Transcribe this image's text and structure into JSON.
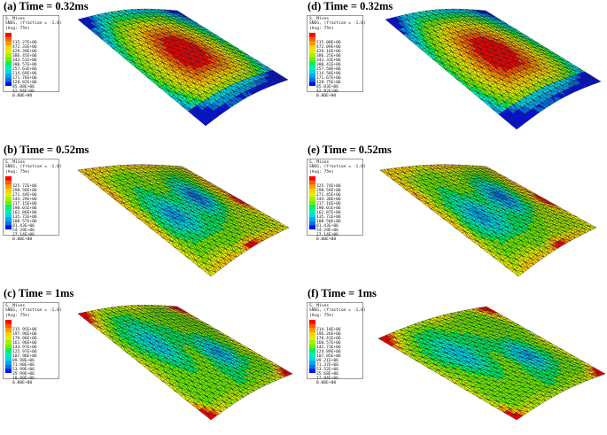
{
  "panels": [
    {
      "label": "(a)",
      "time": "Time = 0.32ms",
      "legend": {
        "l1": "S, Mises",
        "l2": "SNEG, (fraction = -1.0)",
        "l3": "(Avg: 75%)",
        "values": [
          "515.27E+06",
          "472.33E+06",
          "429.39E+06",
          "386.45E+06",
          "343.51E+06",
          "300.57E+06",
          "257.63E+06",
          "214.69E+06",
          "171.76E+06",
          "128.82E+06",
          "85.88E+06",
          "42.94E+06",
          "0.00E+00"
        ]
      }
    },
    {
      "label": "(d)",
      "time": "Time = 0.32ms",
      "legend": {
        "l1": "S, Mises",
        "l2": "SNEG, (fraction = -1.0)",
        "l3": "(Avg: 75%)",
        "values": [
          "515.00E+06",
          "472.09E+06",
          "429.16E+06",
          "386.25E+06",
          "343.33E+06",
          "300.41E+06",
          "257.50E+06",
          "214.58E+06",
          "171.67E+06",
          "128.75E+06",
          "85.83E+06",
          "42.92E+06",
          "0.00E+00"
        ]
      }
    },
    {
      "label": "(b)",
      "time": "Time = 0.52ms",
      "legend": {
        "l1": "S, Mises",
        "l2": "SNEG, (fraction = -1.0)",
        "l3": "(Avg: 75%)",
        "values": [
          "325.72E+06",
          "298.58E+06",
          "271.44E+06",
          "244.29E+06",
          "217.15E+06",
          "190.01E+06",
          "162.86E+06",
          "135.72E+06",
          "108.57E+06",
          "81.43E+06",
          "54.29E+06",
          "27.14E+06",
          "0.00E+00"
        ]
      }
    },
    {
      "label": "(e)",
      "time": "Time = 0.52ms",
      "legend": {
        "l1": "S, Mises",
        "l2": "SNEG, (fraction = -1.0)",
        "l3": "(Avg: 75%)",
        "values": [
          "325.74E+06",
          "298.59E+06",
          "271.45E+06",
          "244.30E+06",
          "217.16E+06",
          "190.01E+06",
          "162.87E+06",
          "135.72E+06",
          "108.58E+06",
          "81.43E+06",
          "54.29E+06",
          "27.14E+06",
          "0.00E+00"
        ]
      }
    },
    {
      "label": "(c)",
      "time": "Time = 1ms",
      "legend": {
        "l1": "S, Mises",
        "l2": "SNEG, (fraction = -1.0)",
        "l3": "(Avg: 75%)",
        "values": [
          "215.95E+06",
          "197.96E+06",
          "179.96E+06",
          "161.96E+06",
          "143.97E+06",
          "125.97E+06",
          "107.98E+06",
          "89.98E+06",
          "71.98E+06",
          "53.99E+06",
          "35.99E+06",
          "18.00E+06",
          "0.00E+00"
        ]
      }
    },
    {
      "label": "(f)",
      "time": "Time = 1ms",
      "legend": {
        "l1": "S, Mises",
        "l2": "SNEG, (fraction = -1.0)",
        "l3": "(Avg: 75%)",
        "values": [
          "214.10E+06",
          "196.26E+06",
          "178.41E+06",
          "160.57E+06",
          "142.73E+06",
          "124.89E+06",
          "107.05E+06",
          "89.21E+06",
          "71.37E+06",
          "53.52E+06",
          "35.68E+06",
          "17.84E+06",
          "0.00E+00"
        ]
      }
    }
  ],
  "colormap": [
    "#ff0000",
    "#ff5a00",
    "#ff9b00",
    "#ffd200",
    "#e3f000",
    "#a8f000",
    "#6ef000",
    "#00f060",
    "#00f0b0",
    "#00d8e8",
    "#00a8f0",
    "#0070f0",
    "#0010f0"
  ],
  "field_patterns": [
    "high-center",
    "high-center",
    "low-center",
    "low-center",
    "corner-hot",
    "corner-hot"
  ]
}
